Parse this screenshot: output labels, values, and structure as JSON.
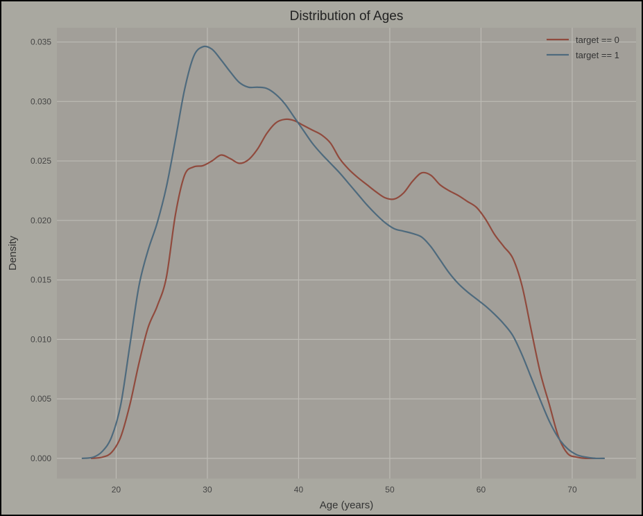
{
  "chart_data": {
    "type": "line",
    "title": "Distribution of Ages",
    "xlabel": "Age (years)",
    "ylabel": "Density",
    "xlim": [
      13.5,
      77
    ],
    "ylim": [
      -0.0017,
      0.0362
    ],
    "xticks": [
      20,
      30,
      40,
      50,
      60,
      70
    ],
    "xtick_labels": [
      "20",
      "30",
      "40",
      "50",
      "60",
      "70"
    ],
    "yticks": [
      0.0,
      0.005,
      0.01,
      0.015,
      0.02,
      0.025,
      0.03,
      0.035
    ],
    "ytick_labels": [
      "0.000",
      "0.005",
      "0.010",
      "0.015",
      "0.020",
      "0.025",
      "0.030",
      "0.035"
    ],
    "grid": true,
    "legend_position": "top-right",
    "colors": {
      "figure_bg": "#a9a8a0",
      "plot_bg": "#a29f99",
      "grid": "#bdbbb5"
    },
    "series": [
      {
        "name": "target == 0",
        "color": "#904a3d",
        "x": [
          17.3,
          18.5,
          19.5,
          20.5,
          21.5,
          22.5,
          23.5,
          24.5,
          25.5,
          26.5,
          27.5,
          28.5,
          29.5,
          30.5,
          31.5,
          32.5,
          33.5,
          34.5,
          35.5,
          36.5,
          37.5,
          38.5,
          39.5,
          40.5,
          41.5,
          42.5,
          43.5,
          44.5,
          45.5,
          46.5,
          47.5,
          48.5,
          49.5,
          50.5,
          51.5,
          52.5,
          53.5,
          54.5,
          55.5,
          56.5,
          57.5,
          58.5,
          59.5,
          60.5,
          61.5,
          62.5,
          63.5,
          64.5,
          65.5,
          66.5,
          67.5,
          68.5,
          69.5,
          70.5,
          71.5,
          72.5
        ],
        "values": [
          0.0,
          0.0001,
          0.0005,
          0.0018,
          0.0045,
          0.008,
          0.011,
          0.0128,
          0.0152,
          0.0205,
          0.0238,
          0.0245,
          0.0246,
          0.025,
          0.0255,
          0.0252,
          0.0248,
          0.0251,
          0.026,
          0.0273,
          0.0282,
          0.0285,
          0.0284,
          0.028,
          0.0276,
          0.0272,
          0.0265,
          0.0252,
          0.0243,
          0.0236,
          0.023,
          0.0224,
          0.0219,
          0.0218,
          0.0223,
          0.0233,
          0.024,
          0.0238,
          0.023,
          0.0225,
          0.0221,
          0.0216,
          0.0211,
          0.0201,
          0.0188,
          0.0178,
          0.0168,
          0.0145,
          0.0108,
          0.0072,
          0.0045,
          0.0018,
          0.0004,
          0.0001,
          0.0,
          0.0
        ]
      },
      {
        "name": "target == 1",
        "color": "#4e6a7d",
        "x": [
          16.3,
          17.5,
          18.5,
          19.5,
          20.5,
          21.5,
          22.5,
          23.5,
          24.5,
          25.5,
          26.5,
          27.5,
          28.5,
          29.5,
          30.5,
          31.5,
          32.5,
          33.5,
          34.5,
          35.5,
          36.5,
          37.5,
          38.5,
          39.5,
          40.5,
          41.5,
          42.5,
          43.5,
          44.5,
          45.5,
          46.5,
          47.5,
          48.5,
          49.5,
          50.5,
          51.5,
          52.5,
          53.5,
          54.5,
          55.5,
          56.5,
          57.5,
          58.5,
          59.5,
          60.5,
          61.5,
          62.5,
          63.5,
          64.5,
          65.5,
          66.5,
          67.5,
          68.5,
          69.5,
          70.5,
          71.5,
          72.5,
          73.5
        ],
        "values": [
          0.0,
          0.0001,
          0.0006,
          0.0018,
          0.0045,
          0.0095,
          0.0145,
          0.0175,
          0.0198,
          0.0228,
          0.0268,
          0.031,
          0.0338,
          0.0346,
          0.0344,
          0.0335,
          0.0325,
          0.0316,
          0.0312,
          0.0312,
          0.0311,
          0.0306,
          0.0298,
          0.0287,
          0.0276,
          0.0265,
          0.0256,
          0.0248,
          0.024,
          0.0231,
          0.0222,
          0.0213,
          0.0205,
          0.0198,
          0.0193,
          0.0191,
          0.0189,
          0.0186,
          0.0178,
          0.0167,
          0.0156,
          0.0147,
          0.014,
          0.0134,
          0.0128,
          0.0121,
          0.0113,
          0.0103,
          0.0087,
          0.0068,
          0.0049,
          0.0031,
          0.0017,
          0.0008,
          0.0003,
          0.0001,
          0.0,
          0.0
        ]
      }
    ]
  }
}
